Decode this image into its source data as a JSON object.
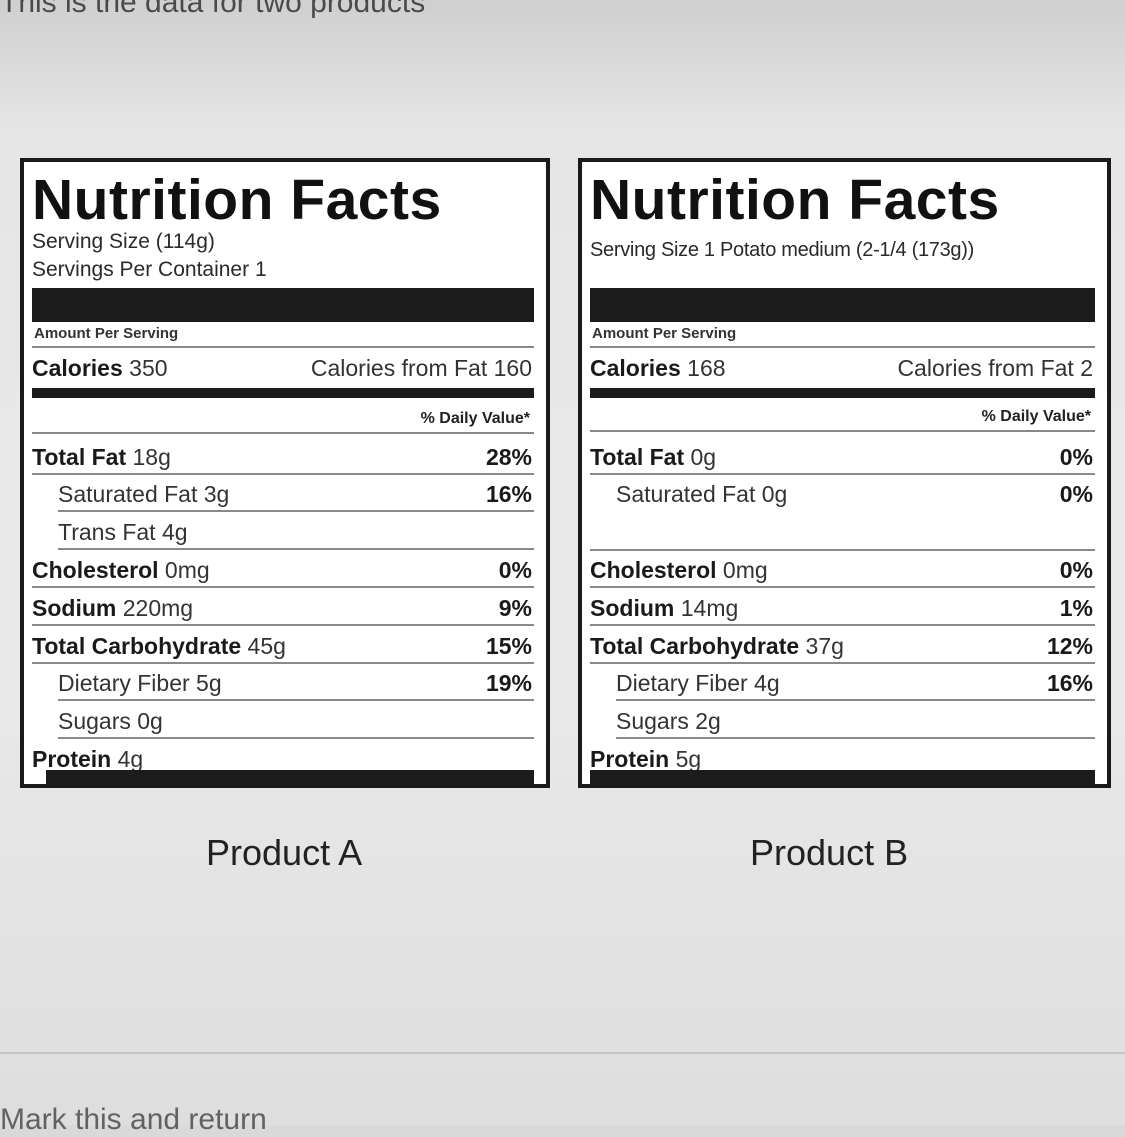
{
  "header_fragment": "This is the data for two products",
  "footer_fragment": "Mark this and return",
  "labels": [
    {
      "title": "Nutrition Facts",
      "serving_size": "Serving Size (114g)",
      "servings_per_container": "Servings Per Container 1",
      "amount_per_serving": "Amount Per Serving",
      "calories_label": "Calories",
      "calories_value": "350",
      "calories_from_fat": "Calories from Fat 160",
      "daily_value_header": "% Daily Value*",
      "rows": {
        "total_fat": {
          "name": "Total Fat",
          "amount": "18g",
          "pct": "28%"
        },
        "saturated_fat": {
          "name": "Saturated Fat",
          "amount": "3g",
          "pct": "16%"
        },
        "trans_fat": {
          "name": "Trans Fat",
          "amount": "4g",
          "pct": ""
        },
        "cholesterol": {
          "name": "Cholesterol",
          "amount": "0mg",
          "pct": "0%"
        },
        "sodium": {
          "name": "Sodium",
          "amount": "220mg",
          "pct": "9%"
        },
        "total_carbohydrate": {
          "name": "Total Carbohydrate",
          "amount": "45g",
          "pct": "15%"
        },
        "dietary_fiber": {
          "name": "Dietary Fiber",
          "amount": "5g",
          "pct": "19%"
        },
        "sugars": {
          "name": "Sugars",
          "amount": "0g",
          "pct": ""
        },
        "protein": {
          "name": "Protein",
          "amount": "4g",
          "pct": ""
        }
      },
      "caption": "Product A"
    },
    {
      "title": "Nutrition Facts",
      "serving_size": "Serving Size 1 Potato medium (2-1/4 (173g))",
      "amount_per_serving": "Amount Per Serving",
      "calories_label": "Calories",
      "calories_value": "168",
      "calories_from_fat": "Calories from Fat 2",
      "daily_value_header": "% Daily Value*",
      "rows": {
        "total_fat": {
          "name": "Total Fat",
          "amount": "0g",
          "pct": "0%"
        },
        "saturated_fat": {
          "name": "Saturated Fat",
          "amount": "0g",
          "pct": "0%"
        },
        "cholesterol": {
          "name": "Cholesterol",
          "amount": "0mg",
          "pct": "0%"
        },
        "sodium": {
          "name": "Sodium",
          "amount": "14mg",
          "pct": "1%"
        },
        "total_carbohydrate": {
          "name": "Total Carbohydrate",
          "amount": "37g",
          "pct": "12%"
        },
        "dietary_fiber": {
          "name": "Dietary Fiber",
          "amount": "4g",
          "pct": "16%"
        },
        "sugars": {
          "name": "Sugars",
          "amount": "2g",
          "pct": ""
        },
        "protein": {
          "name": "Protein",
          "amount": "5g",
          "pct": ""
        }
      },
      "caption": "Product B"
    }
  ]
}
